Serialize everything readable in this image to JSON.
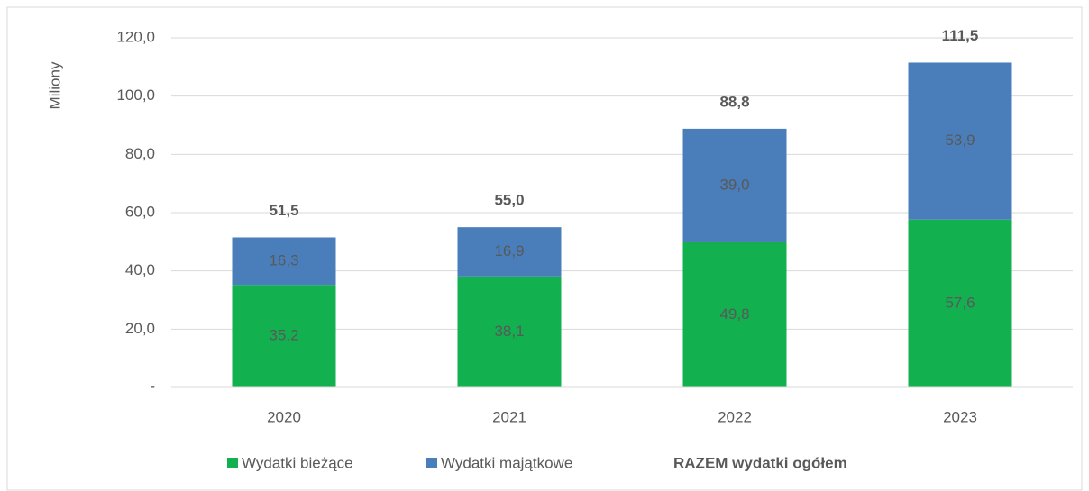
{
  "chart_data": {
    "type": "stacked_bar",
    "y_label": "Miliony",
    "categories": [
      "2020",
      "2021",
      "2022",
      "2023"
    ],
    "series": [
      {
        "name": "Wydatki bieżące",
        "color": "#12b04f",
        "values": [
          35.2,
          38.1,
          49.8,
          57.6
        ],
        "value_labels": [
          "35,2",
          "38,1",
          "49,8",
          "57,6"
        ]
      },
      {
        "name": "Wydatki majątkowe",
        "color": "#4a7ebb",
        "values": [
          16.3,
          16.9,
          39.0,
          53.9
        ],
        "value_labels": [
          "16,3",
          "16,9",
          "39,0",
          "53,9"
        ]
      }
    ],
    "totals": {
      "name": "RAZEM wydatki ogółem",
      "values": [
        51.5,
        55.0,
        88.8,
        111.5
      ],
      "value_labels": [
        "51,5",
        "55,0",
        "88,8",
        "111,5"
      ]
    },
    "ylim": [
      0,
      120
    ],
    "yticks": [
      {
        "value": 0,
        "label": "-"
      },
      {
        "value": 20,
        "label": "20,0"
      },
      {
        "value": 40,
        "label": "40,0"
      },
      {
        "value": 60,
        "label": "60,0"
      },
      {
        "value": 80,
        "label": "80,0"
      },
      {
        "value": 100,
        "label": "100,0"
      },
      {
        "value": 120,
        "label": "120,0"
      }
    ],
    "grid": true
  }
}
